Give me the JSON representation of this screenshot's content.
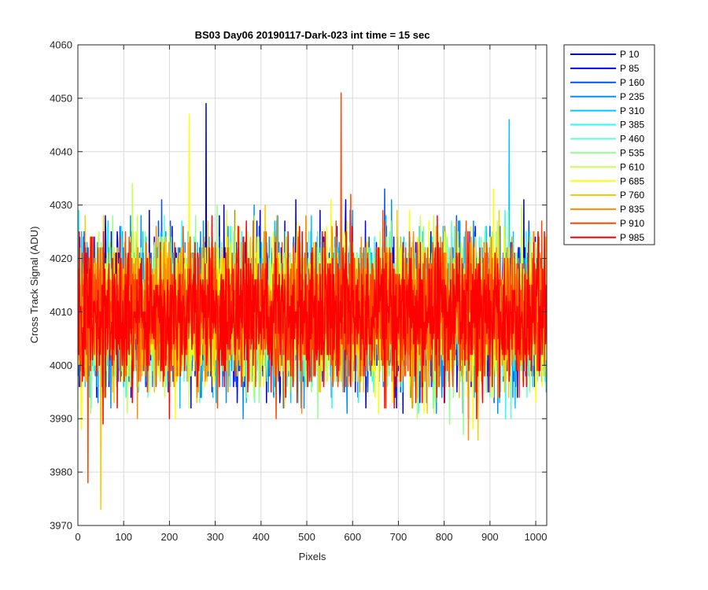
{
  "chart_data": {
    "type": "line",
    "title": "BS03 Day06 20190117-Dark-023 int time = 15 sec",
    "xlabel": "Pixels",
    "ylabel": "Cross Track Signal (ADU)",
    "xlim": [
      0,
      1024
    ],
    "ylim": [
      3970,
      4060
    ],
    "xticks": [
      0,
      100,
      200,
      300,
      400,
      500,
      600,
      700,
      800,
      900,
      1000
    ],
    "yticks": [
      3970,
      3980,
      3990,
      4000,
      4010,
      4020,
      4030,
      4040,
      4050,
      4060
    ],
    "grid": true,
    "legend_position": "outside-top-right",
    "x_range": [
      1,
      1024
    ],
    "series": [
      {
        "name": "P 10",
        "color": "#0000c8",
        "mean": 4010,
        "std": 6.5
      },
      {
        "name": "P 85",
        "color": "#0000ff",
        "mean": 4010,
        "std": 6.5
      },
      {
        "name": "P 160",
        "color": "#0050ff",
        "mean": 4010,
        "std": 6.5
      },
      {
        "name": "P 235",
        "color": "#0090ff",
        "mean": 4010,
        "std": 6.5
      },
      {
        "name": "P 310",
        "color": "#00c8ff",
        "mean": 4010,
        "std": 6.5
      },
      {
        "name": "P 385",
        "color": "#1effff",
        "mean": 4010,
        "std": 6.5
      },
      {
        "name": "P 460",
        "color": "#60ffd0",
        "mean": 4010,
        "std": 6.5
      },
      {
        "name": "P 535",
        "color": "#90ff90",
        "mean": 4010,
        "std": 6.5
      },
      {
        "name": "P 610",
        "color": "#c8ff50",
        "mean": 4010,
        "std": 6.5
      },
      {
        "name": "P 685",
        "color": "#ffff00",
        "mean": 4010,
        "std": 6.5
      },
      {
        "name": "P 760",
        "color": "#ffc800",
        "mean": 4010,
        "std": 6.5
      },
      {
        "name": "P 835",
        "color": "#ff8c00",
        "mean": 4010,
        "std": 6.5
      },
      {
        "name": "P 910",
        "color": "#ff4600",
        "mean": 4010,
        "std": 6.5
      },
      {
        "name": "P 985",
        "color": "#ff0000",
        "mean": 4010,
        "std": 6.5
      }
    ],
    "notable_peaks": [
      {
        "series": "P 10",
        "x": 280,
        "y": 4049
      },
      {
        "series": "P 910",
        "x": 575,
        "y": 4051
      },
      {
        "series": "P 685",
        "x": 243,
        "y": 4047
      },
      {
        "series": "P 310",
        "x": 942,
        "y": 4046
      },
      {
        "series": "P 760",
        "x": 50,
        "y": 3973
      },
      {
        "series": "P 910",
        "x": 22,
        "y": 3978
      }
    ]
  }
}
